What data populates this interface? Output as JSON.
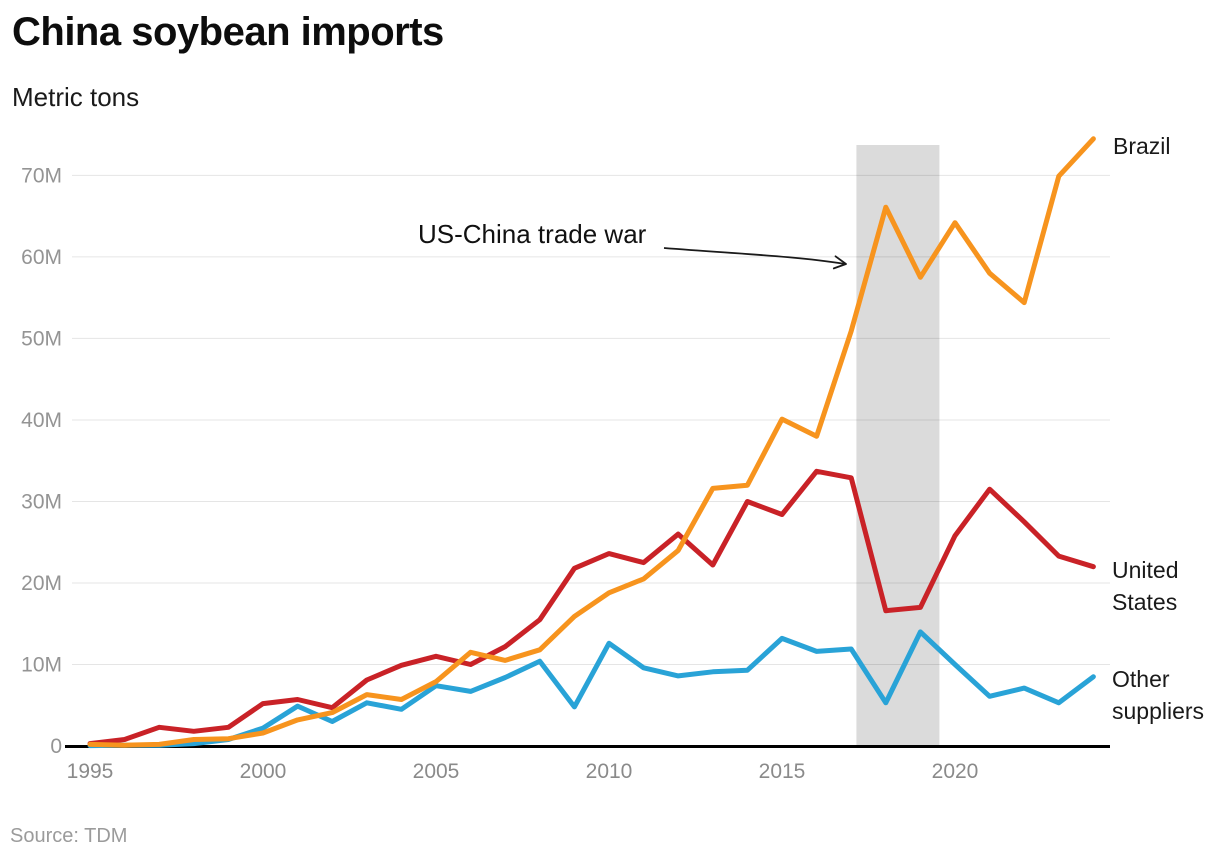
{
  "chart_data": {
    "type": "line",
    "title": "China soybean imports",
    "ylabel": "Metric tons",
    "xlabel": "",
    "unit": "metric tons (millions)",
    "grid": true,
    "legend_position": "line-end-labels-right",
    "ylim": [
      0,
      74.5
    ],
    "xlim": [
      1995,
      2024
    ],
    "x": [
      1995,
      1996,
      1997,
      1998,
      1999,
      2000,
      2001,
      2002,
      2003,
      2004,
      2005,
      2006,
      2007,
      2008,
      2009,
      2010,
      2011,
      2012,
      2013,
      2014,
      2015,
      2016,
      2017,
      2018,
      2019,
      2020,
      2021,
      2022,
      2023,
      2024
    ],
    "series": [
      {
        "name": "Brazil",
        "color": "#F7941E",
        "values": [
          0.2,
          0.1,
          0.2,
          0.8,
          0.9,
          1.6,
          3.2,
          4.1,
          6.3,
          5.7,
          7.9,
          11.5,
          10.5,
          11.8,
          15.9,
          18.8,
          20.5,
          24.0,
          31.6,
          32.0,
          40.1,
          38.0,
          50.9,
          66.1,
          57.5,
          64.2,
          58.0,
          54.4,
          69.9,
          74.5
        ]
      },
      {
        "name": "United States",
        "color": "#C92227",
        "values": [
          0.3,
          0.8,
          2.3,
          1.8,
          2.3,
          5.2,
          5.7,
          4.7,
          8.1,
          9.9,
          11.0,
          10.0,
          12.2,
          15.5,
          21.8,
          23.6,
          22.5,
          26.0,
          22.2,
          30.0,
          28.4,
          33.7,
          32.9,
          16.6,
          17.0,
          25.8,
          31.5,
          27.5,
          23.3,
          22.0
        ]
      },
      {
        "name": "Other suppliers",
        "color": "#29A3D7",
        "values": [
          0.05,
          0.1,
          0.1,
          0.3,
          0.8,
          2.2,
          4.9,
          3.0,
          5.3,
          4.5,
          7.4,
          6.7,
          8.4,
          10.4,
          4.8,
          12.6,
          9.6,
          8.6,
          9.1,
          9.3,
          13.2,
          11.6,
          11.9,
          5.3,
          14.0,
          10.0,
          6.1,
          7.1,
          5.3,
          8.5
        ]
      }
    ],
    "yticks": [
      "0",
      "10M",
      "20M",
      "30M",
      "40M",
      "50M",
      "60M",
      "70M"
    ],
    "xticks": [
      1995,
      2000,
      2005,
      2010,
      2015,
      2020
    ],
    "shaded_region": {
      "label": "US-China trade war",
      "x_start": 2017.15,
      "x_end": 2019.55,
      "color": "#DBDBDB"
    },
    "source": "Source: TDM"
  }
}
